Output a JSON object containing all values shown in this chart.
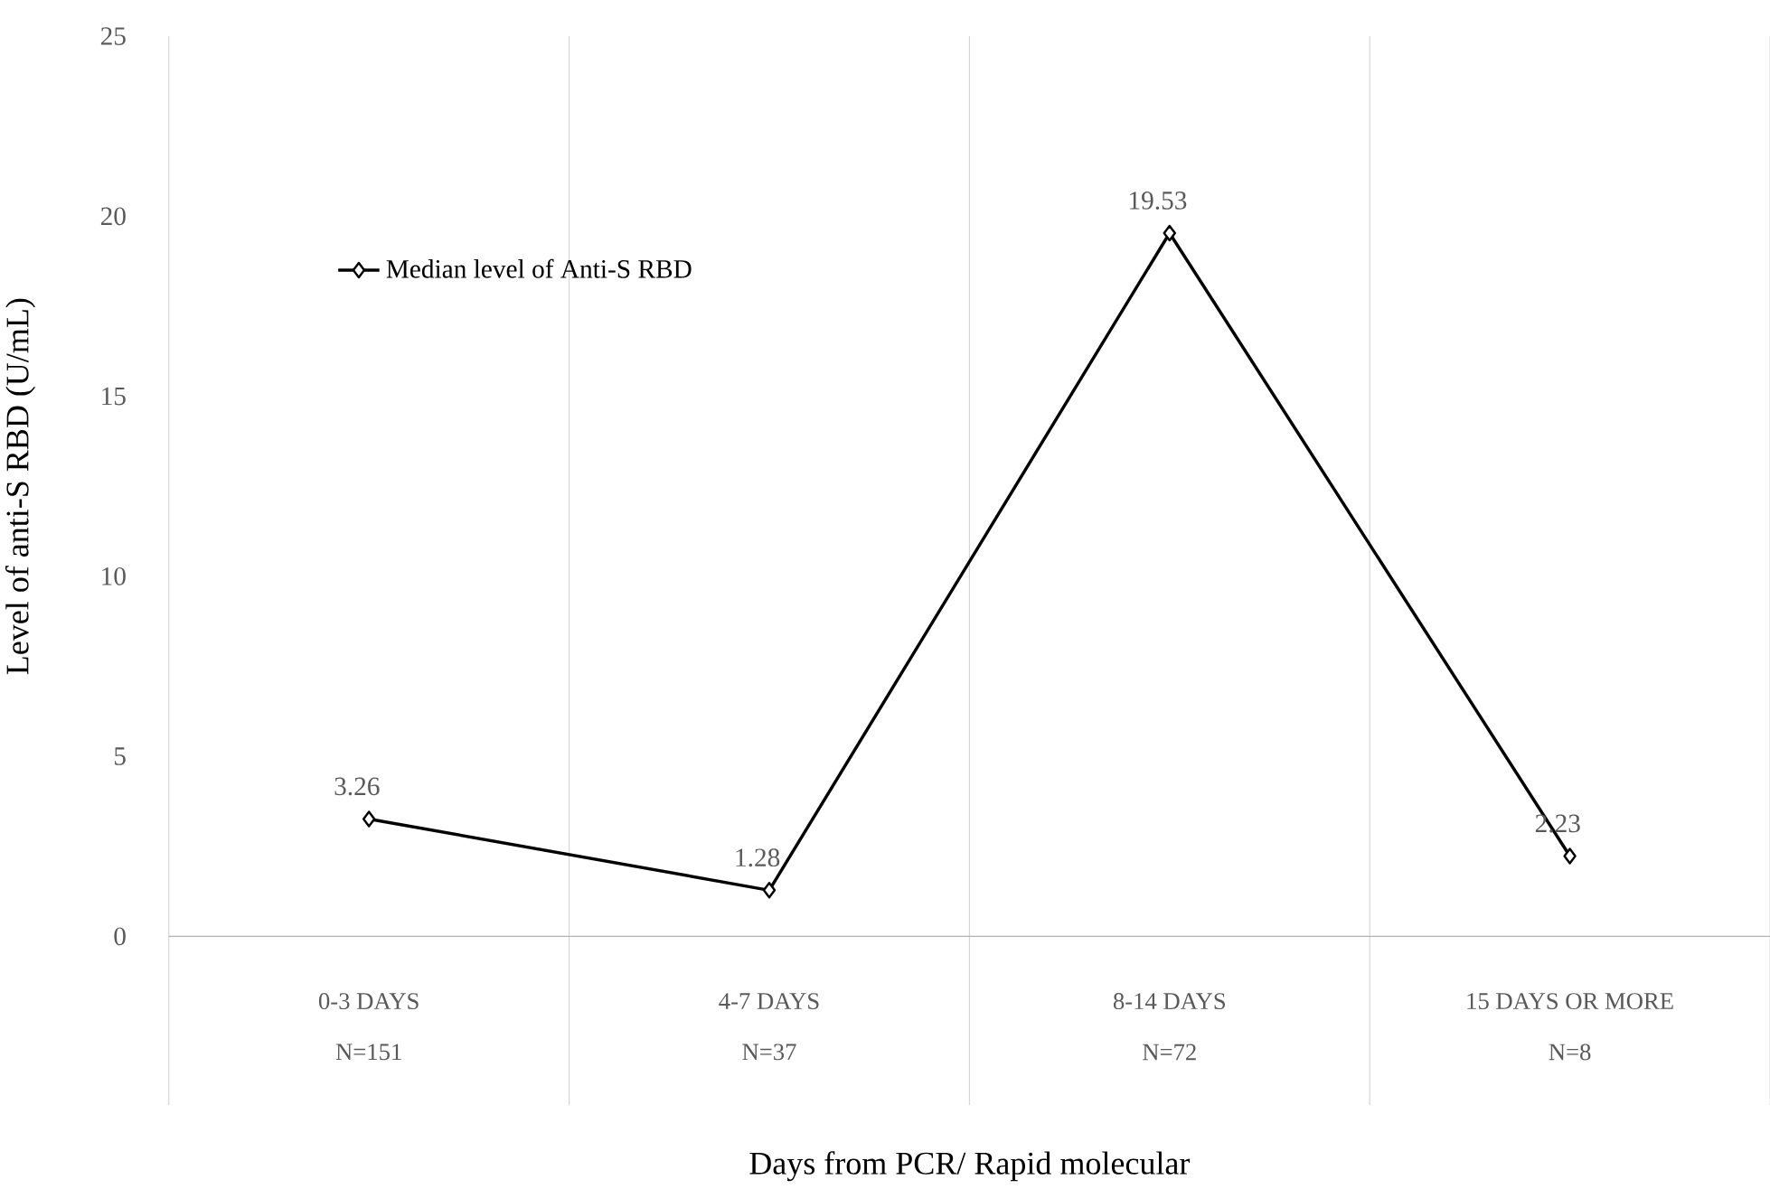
{
  "chart_data": {
    "type": "line",
    "xlabel": "Days from PCR/ Rapid molecular",
    "ylabel": "Level of anti-S RBD (U/mL)",
    "categories": [
      "0-3 DAYS",
      "4-7 DAYS",
      "8-14 DAYS",
      "15 DAYS OR MORE"
    ],
    "series": [
      {
        "name": "Median level of Anti-S RBD",
        "color": "#000000",
        "values": [
          3.26,
          1.28,
          19.53,
          2.23
        ]
      }
    ],
    "ylim": [
      0,
      25
    ],
    "yticks": [
      0,
      5,
      10,
      15,
      20,
      25
    ],
    "grid": "x",
    "legend": "top left",
    "marker": "diamond",
    "line_style": "solid",
    "data_labels": true,
    "annotations": [
      "N=151",
      "N=37",
      "N=72",
      "N=8"
    ]
  }
}
